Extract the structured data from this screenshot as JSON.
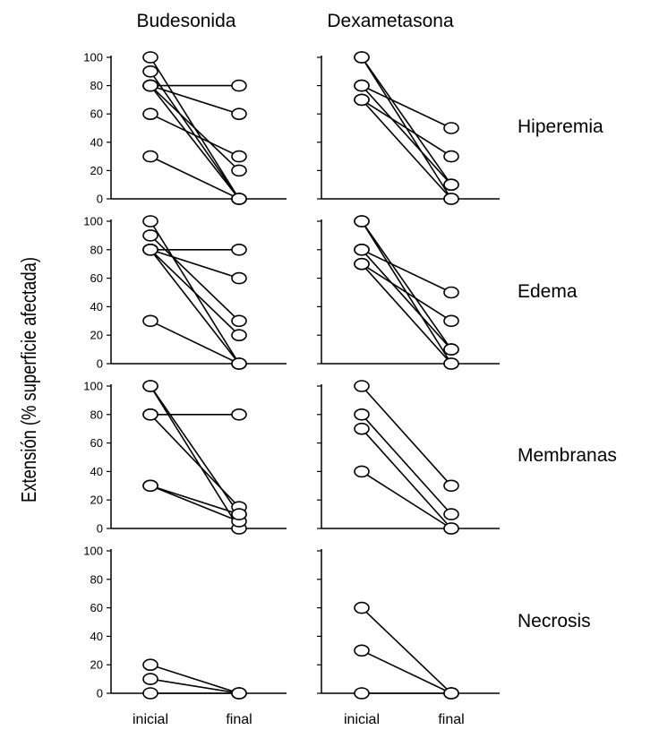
{
  "ylabel": "Extensión (% superficie afectada)",
  "columns": [
    "Budesonida",
    "Dexametasona"
  ],
  "rows": [
    "Hiperemia",
    "Edema",
    "Membranas",
    "Necrosis"
  ],
  "x_categories": [
    "inicial",
    "final"
  ],
  "y_ticks": [
    "0",
    "20",
    "40",
    "60",
    "80",
    "100"
  ],
  "colors": {
    "line": "#000000",
    "marker_fill": "#ffffff",
    "background": "#ffffff"
  },
  "chart_data": [
    {
      "type": "line",
      "row": "Hiperemia",
      "column": "Budesonida",
      "categories": [
        "inicial",
        "final"
      ],
      "ylim": [
        0,
        100
      ],
      "series": [
        {
          "values": [
            100,
            0
          ]
        },
        {
          "values": [
            90,
            0
          ]
        },
        {
          "values": [
            80,
            80
          ]
        },
        {
          "values": [
            80,
            60
          ]
        },
        {
          "values": [
            80,
            20
          ]
        },
        {
          "values": [
            80,
            0
          ]
        },
        {
          "values": [
            60,
            30
          ]
        },
        {
          "values": [
            30,
            0
          ]
        }
      ]
    },
    {
      "type": "line",
      "row": "Hiperemia",
      "column": "Dexametasona",
      "categories": [
        "inicial",
        "final"
      ],
      "ylim": [
        0,
        100
      ],
      "series": [
        {
          "values": [
            100,
            10
          ]
        },
        {
          "values": [
            100,
            0
          ]
        },
        {
          "values": [
            80,
            50
          ]
        },
        {
          "values": [
            80,
            10
          ]
        },
        {
          "values": [
            70,
            30
          ]
        },
        {
          "values": [
            70,
            0
          ]
        }
      ]
    },
    {
      "type": "line",
      "row": "Edema",
      "column": "Budesonida",
      "categories": [
        "inicial",
        "final"
      ],
      "ylim": [
        0,
        100
      ],
      "series": [
        {
          "values": [
            100,
            0
          ]
        },
        {
          "values": [
            90,
            30
          ]
        },
        {
          "values": [
            80,
            80
          ]
        },
        {
          "values": [
            80,
            60
          ]
        },
        {
          "values": [
            80,
            20
          ]
        },
        {
          "values": [
            80,
            0
          ]
        },
        {
          "values": [
            30,
            0
          ]
        }
      ]
    },
    {
      "type": "line",
      "row": "Edema",
      "column": "Dexametasona",
      "categories": [
        "inicial",
        "final"
      ],
      "ylim": [
        0,
        100
      ],
      "series": [
        {
          "values": [
            100,
            10
          ]
        },
        {
          "values": [
            100,
            0
          ]
        },
        {
          "values": [
            80,
            50
          ]
        },
        {
          "values": [
            80,
            10
          ]
        },
        {
          "values": [
            70,
            30
          ]
        },
        {
          "values": [
            70,
            0
          ]
        }
      ]
    },
    {
      "type": "line",
      "row": "Membranas",
      "column": "Budesonida",
      "categories": [
        "inicial",
        "final"
      ],
      "ylim": [
        0,
        100
      ],
      "series": [
        {
          "values": [
            100,
            10
          ]
        },
        {
          "values": [
            100,
            0
          ]
        },
        {
          "values": [
            80,
            80
          ]
        },
        {
          "values": [
            80,
            15
          ]
        },
        {
          "values": [
            30,
            5
          ]
        },
        {
          "values": [
            30,
            10
          ]
        }
      ]
    },
    {
      "type": "line",
      "row": "Membranas",
      "column": "Dexametasona",
      "categories": [
        "inicial",
        "final"
      ],
      "ylim": [
        0,
        100
      ],
      "series": [
        {
          "values": [
            100,
            30
          ]
        },
        {
          "values": [
            80,
            10
          ]
        },
        {
          "values": [
            70,
            0
          ]
        },
        {
          "values": [
            40,
            0
          ]
        }
      ]
    },
    {
      "type": "line",
      "row": "Necrosis",
      "column": "Budesonida",
      "categories": [
        "inicial",
        "final"
      ],
      "ylim": [
        0,
        100
      ],
      "series": [
        {
          "values": [
            20,
            0
          ]
        },
        {
          "values": [
            10,
            0
          ]
        },
        {
          "values": [
            0,
            0
          ]
        }
      ]
    },
    {
      "type": "line",
      "row": "Necrosis",
      "column": "Dexametasona",
      "categories": [
        "inicial",
        "final"
      ],
      "ylim": [
        0,
        100
      ],
      "series": [
        {
          "values": [
            60,
            0
          ]
        },
        {
          "values": [
            30,
            0
          ]
        },
        {
          "values": [
            0,
            0
          ]
        }
      ]
    }
  ]
}
